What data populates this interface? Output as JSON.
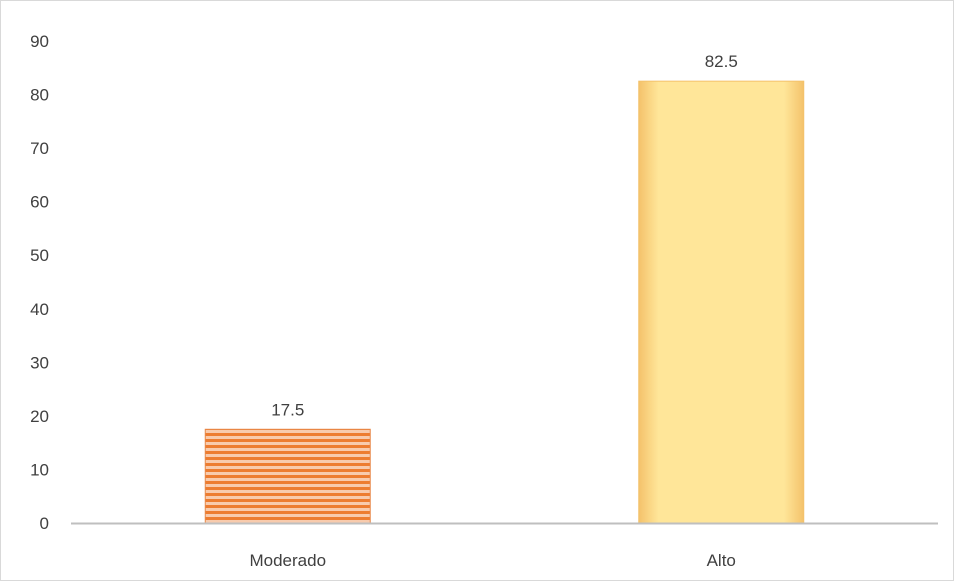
{
  "chart_data": {
    "type": "bar",
    "categories": [
      "Moderado",
      "Alto"
    ],
    "values": [
      17.5,
      82.5
    ],
    "data_labels": [
      "17.5",
      "82.5"
    ],
    "y_ticks": [
      "0",
      "10",
      "20",
      "30",
      "40",
      "50",
      "60",
      "70",
      "80",
      "90"
    ],
    "ylim": [
      0,
      90
    ],
    "grid": false,
    "legend": "none",
    "title": "",
    "xlabel": "",
    "ylabel": "",
    "bar_styles": [
      {
        "pattern": "horizontal-stripes",
        "color": "#ed7d31",
        "stripe_color": "#f8cbad",
        "border": "#e8894a"
      },
      {
        "pattern": "solid",
        "color": "#ffe699",
        "border": "#f4c26b"
      }
    ],
    "axis_color": "#bfbfbf",
    "text_color": "#404040"
  }
}
